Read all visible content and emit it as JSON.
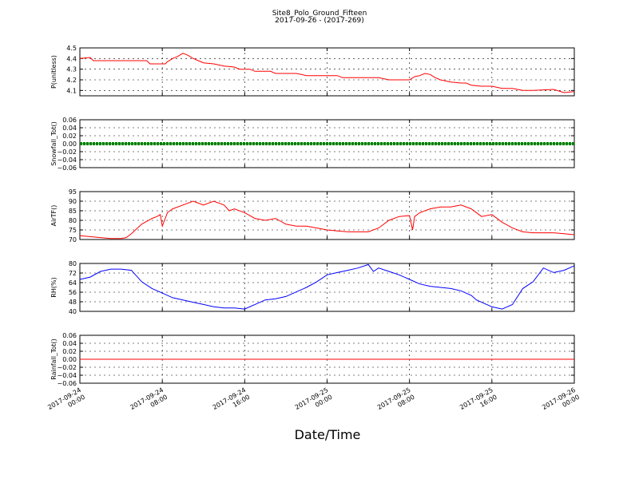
{
  "title": "Site8_Polo_Ground_Fifteen",
  "subtitle": "2017-09-26 - (2017-269)",
  "xlabel": "Date/Time",
  "x_ticks": [
    "2017-09-24\n00:00",
    "2017-09-24\n08:00",
    "2017-09-24\n16:00",
    "2017-09-25\n00:00",
    "2017-09-25\n08:00",
    "2017-09-25\n16:00",
    "2017-09-26\n00:00"
  ],
  "chart_data": [
    {
      "type": "line",
      "ylabel": "P(unitless)",
      "xlim": [
        "2017-09-24 00:00",
        "2017-09-26 00:00"
      ],
      "ylim": [
        4.05,
        4.5
      ],
      "yticks": [
        "4.1",
        "4.2",
        "4.3",
        "4.4",
        "4.5"
      ],
      "grid": true,
      "color": "#ff0000",
      "series": [
        {
          "x_hours": [
            0,
            1,
            1.3,
            2,
            4,
            5,
            6.5,
            6.8,
            8,
            8.3,
            8.5,
            9,
            9.5,
            10,
            10.5,
            11,
            11.5,
            12,
            13,
            14,
            15,
            15.5,
            16,
            16.5,
            17,
            18,
            18.5,
            19,
            20,
            21,
            21.5,
            22,
            24,
            25,
            25.5,
            26,
            28,
            29,
            30,
            31,
            31.5,
            32,
            32.5,
            33,
            33.5,
            34,
            34.5,
            35,
            36,
            37,
            37.5,
            38,
            39,
            40,
            41,
            42,
            43,
            44,
            46,
            47,
            48
          ],
          "y": [
            4.4,
            4.41,
            4.38,
            4.38,
            4.38,
            4.38,
            4.38,
            4.35,
            4.35,
            4.35,
            4.37,
            4.4,
            4.42,
            4.45,
            4.43,
            4.4,
            4.38,
            4.36,
            4.35,
            4.33,
            4.32,
            4.3,
            4.3,
            4.3,
            4.28,
            4.28,
            4.28,
            4.26,
            4.26,
            4.26,
            4.25,
            4.24,
            4.24,
            4.24,
            4.22,
            4.22,
            4.22,
            4.22,
            4.2,
            4.2,
            4.2,
            4.2,
            4.23,
            4.24,
            4.26,
            4.25,
            4.22,
            4.2,
            4.18,
            4.17,
            4.17,
            4.15,
            4.14,
            4.14,
            4.12,
            4.12,
            4.1,
            4.1,
            4.11,
            4.08,
            4.09
          ]
        }
      ]
    },
    {
      "type": "line",
      "ylabel": "Snowfall_Tot()",
      "xlim": [
        "2017-09-24 00:00",
        "2017-09-26 00:00"
      ],
      "ylim": [
        -0.06,
        0.06
      ],
      "yticks": [
        "−0.06",
        "−0.04",
        "−0.02",
        "0.00",
        "0.02",
        "0.04",
        "0.06"
      ],
      "grid": true,
      "color": "#008000",
      "markers": true,
      "series": [
        {
          "x_hours": [
            0,
            48
          ],
          "y": [
            0,
            0
          ]
        }
      ]
    },
    {
      "type": "line",
      "ylabel": "AirTF()",
      "xlim": [
        "2017-09-24 00:00",
        "2017-09-26 00:00"
      ],
      "ylim": [
        70,
        95
      ],
      "yticks": [
        "70",
        "75",
        "80",
        "85",
        "90",
        "95"
      ],
      "grid": true,
      "color": "#ff0000",
      "series": [
        {
          "x_hours": [
            0,
            1,
            2,
            3,
            4,
            4.5,
            5,
            6,
            7,
            7.5,
            7.8,
            8,
            8.5,
            9,
            10,
            11,
            11.5,
            12,
            13,
            14,
            14.5,
            15,
            16,
            17,
            18,
            19,
            20,
            21,
            22,
            23,
            24,
            25,
            26,
            27,
            28,
            29,
            30,
            31,
            32,
            32.3,
            32.5,
            33,
            34,
            35,
            36,
            37,
            38,
            39,
            40,
            41,
            42,
            43,
            44,
            45,
            46,
            47,
            48
          ],
          "y": [
            72,
            71.5,
            71,
            70.5,
            70.5,
            71,
            73,
            78,
            81,
            82,
            83,
            77,
            84,
            86,
            88,
            90,
            89,
            88,
            90,
            88,
            85,
            86,
            84,
            81,
            80,
            81,
            78,
            77,
            77,
            76,
            75,
            74.5,
            74,
            74,
            74,
            76,
            80,
            82,
            82.5,
            75,
            82,
            84,
            86,
            87,
            87,
            88,
            86,
            82,
            83,
            79,
            76,
            74,
            73.5,
            73.5,
            73.5,
            73,
            72.5
          ]
        }
      ]
    },
    {
      "type": "line",
      "ylabel": "RH(%)",
      "xlim": [
        "2017-09-24 00:00",
        "2017-09-26 00:00"
      ],
      "ylim": [
        40,
        82
      ],
      "yticks": [
        "40",
        "48",
        "56",
        "64",
        "72",
        "80"
      ],
      "grid": true,
      "color": "#0000ff",
      "series": [
        {
          "x_hours": [
            0,
            1,
            2,
            3,
            4,
            5,
            6,
            7,
            8,
            9,
            10,
            11,
            12,
            13,
            14,
            15,
            16,
            17,
            18,
            19,
            20,
            21,
            22,
            23,
            24,
            25,
            26,
            27,
            28,
            28.5,
            29,
            30,
            31,
            32,
            33,
            34,
            35,
            36,
            37,
            38,
            38.5,
            39,
            40,
            41,
            42,
            43,
            44,
            45,
            46,
            47,
            48
          ],
          "y": [
            68,
            70,
            75,
            77,
            77,
            76,
            66,
            60,
            56,
            52,
            50,
            48,
            46,
            44,
            43,
            43,
            42,
            46,
            50,
            51,
            53,
            57,
            61,
            66,
            72,
            74,
            76,
            78,
            81,
            75,
            78,
            75,
            72,
            68,
            64,
            62,
            61,
            60,
            58,
            54,
            50,
            48,
            44,
            42,
            46,
            60,
            66,
            78,
            74,
            76,
            80
          ]
        }
      ]
    },
    {
      "type": "line",
      "ylabel": "Rainfall_Tot()",
      "xlim": [
        "2017-09-24 00:00",
        "2017-09-26 00:00"
      ],
      "ylim": [
        -0.06,
        0.06
      ],
      "yticks": [
        "−0.06",
        "−0.04",
        "−0.02",
        "0.00",
        "0.02",
        "0.04",
        "0.06"
      ],
      "grid": true,
      "color": "#ff0000",
      "series": [
        {
          "x_hours": [
            0,
            48
          ],
          "y": [
            0,
            0
          ]
        }
      ]
    }
  ]
}
